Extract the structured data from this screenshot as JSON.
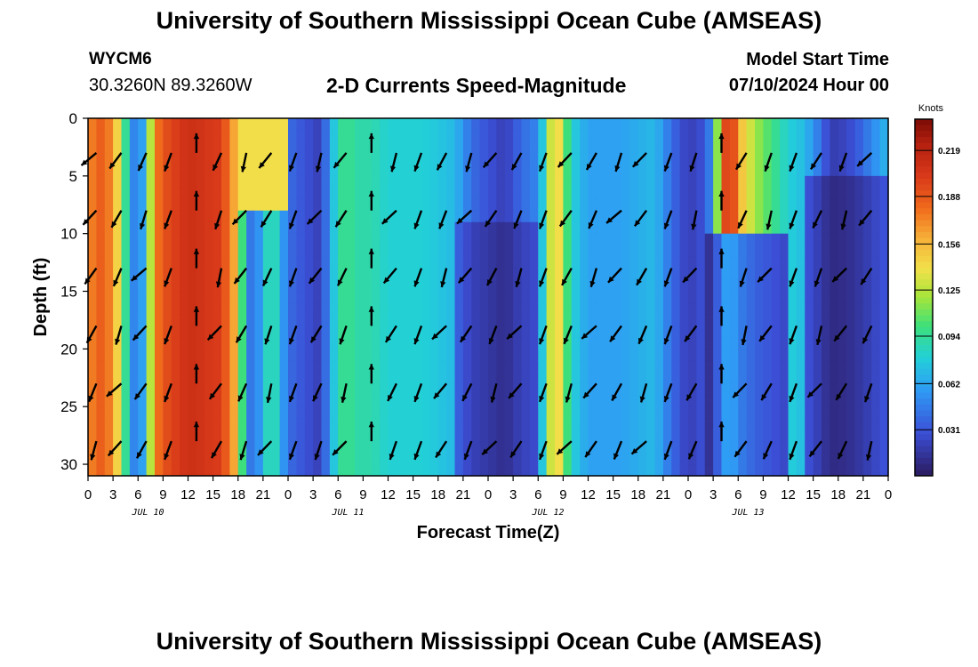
{
  "header": {
    "title": "University of Southern Mississippi Ocean Cube (AMSEAS)",
    "station": "WYCM6",
    "coordinates": "30.3260N  89.3260W",
    "subtitle": "2-D Currents Speed-Magnitude",
    "model_start_label": "Model Start Time",
    "model_start_value": "07/10/2024 Hour 00"
  },
  "footer": {
    "title": "University of Southern Mississippi Ocean Cube (AMSEAS)"
  },
  "chart_data": {
    "type": "heatmap",
    "title": "2-D Currents Speed-Magnitude",
    "xlabel": "Forecast Time(Z)",
    "ylabel": "Depth (ft)",
    "x_ticks": [
      "0",
      "3",
      "6",
      "9",
      "12",
      "15",
      "18",
      "21",
      "0",
      "3",
      "6",
      "9",
      "12",
      "15",
      "18",
      "21",
      "0",
      "3",
      "6",
      "9",
      "12",
      "15",
      "18",
      "21",
      "0",
      "3",
      "6",
      "9",
      "12",
      "15",
      "18",
      "21",
      "0"
    ],
    "day_labels": [
      "JUL 10",
      "JUL 11",
      "JUL 12",
      "JUL 13"
    ],
    "y_ticks": [
      0,
      5,
      10,
      15,
      20,
      25,
      30
    ],
    "ylim": [
      0,
      31
    ],
    "xlim_hours": [
      0,
      96
    ],
    "colorbar": {
      "unit_label": "Knots",
      "range": [
        0.0,
        0.24
      ],
      "ticks": [
        0.031,
        0.062,
        0.094,
        0.125,
        0.156,
        0.188,
        0.219
      ],
      "tick_labels": [
        "0.031",
        "0.062",
        "0.094",
        "0.125",
        "0.156",
        "0.188",
        "0.219"
      ]
    },
    "speed_profile_hours": [
      0,
      2,
      4,
      5,
      6,
      7,
      8,
      9,
      12,
      16,
      18,
      19,
      20,
      21,
      22,
      24,
      26,
      28,
      29,
      30,
      31,
      32,
      34,
      36,
      40,
      44,
      46,
      48,
      50,
      51,
      52,
      54,
      55,
      56,
      57,
      58,
      60,
      64,
      68,
      70,
      72,
      74,
      75,
      76,
      77,
      78,
      80,
      84,
      86,
      88,
      89,
      90,
      92,
      94,
      96
    ],
    "speed_profile_knots": [
      0.17,
      0.19,
      0.13,
      0.06,
      0.04,
      0.08,
      0.17,
      0.19,
      0.21,
      0.2,
      0.15,
      0.05,
      0.04,
      0.07,
      0.1,
      0.04,
      0.03,
      0.02,
      0.06,
      0.09,
      0.1,
      0.09,
      0.09,
      0.08,
      0.08,
      0.07,
      0.04,
      0.03,
      0.02,
      0.03,
      0.04,
      0.05,
      0.1,
      0.16,
      0.12,
      0.08,
      0.06,
      0.06,
      0.07,
      0.04,
      0.02,
      0.03,
      0.06,
      0.17,
      0.22,
      0.16,
      0.12,
      0.08,
      0.07,
      0.04,
      0.02,
      0.02,
      0.03,
      0.05,
      0.07
    ]
  }
}
